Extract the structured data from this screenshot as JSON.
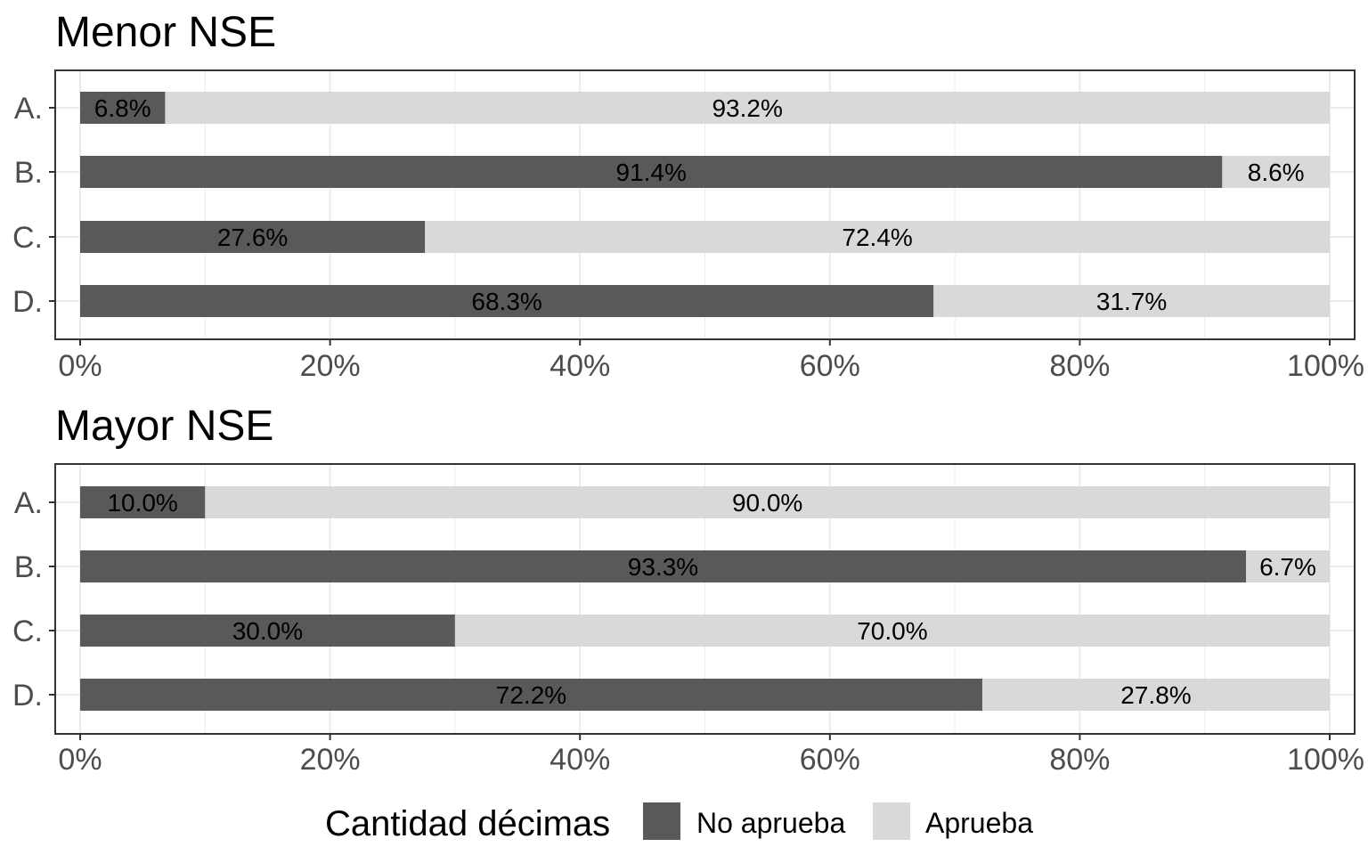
{
  "colors": {
    "no_aprueba": "#595959",
    "aprueba": "#d9d9d9",
    "grid": "#ebebeb",
    "axis_text": "#4d4d4d",
    "panel_border": "#333333",
    "label_text": "#000000"
  },
  "chart_data": [
    {
      "type": "bar",
      "orientation": "horizontal",
      "stacked": true,
      "title": "Menor NSE",
      "categories": [
        "A.",
        "B.",
        "C.",
        "D."
      ],
      "series": [
        {
          "name": "No aprueba",
          "values": [
            6.8,
            91.4,
            27.6,
            68.3
          ],
          "labels": [
            "6.8%",
            "91.4%",
            "27.6%",
            "68.3%"
          ]
        },
        {
          "name": "Aprueba",
          "values": [
            93.2,
            8.6,
            72.4,
            31.7
          ],
          "labels": [
            "93.2%",
            "8.6%",
            "72.4%",
            "31.7%"
          ]
        }
      ],
      "xlim": [
        0,
        100
      ],
      "xticks": [
        "0%",
        "20%",
        "40%",
        "60%",
        "80%",
        "100%"
      ],
      "grid": true
    },
    {
      "type": "bar",
      "orientation": "horizontal",
      "stacked": true,
      "title": "Mayor NSE",
      "categories": [
        "A.",
        "B.",
        "C.",
        "D."
      ],
      "series": [
        {
          "name": "No aprueba",
          "values": [
            10.0,
            93.3,
            30.0,
            72.2
          ],
          "labels": [
            "10.0%",
            "93.3%",
            "30.0%",
            "72.2%"
          ]
        },
        {
          "name": "Aprueba",
          "values": [
            90.0,
            6.7,
            70.0,
            27.8
          ],
          "labels": [
            "90.0%",
            "6.7%",
            "70.0%",
            "27.8%"
          ]
        }
      ],
      "xlim": [
        0,
        100
      ],
      "xticks": [
        "0%",
        "20%",
        "40%",
        "60%",
        "80%",
        "100%"
      ],
      "grid": true
    }
  ],
  "legend": {
    "title": "Cantidad décimas",
    "position": "bottom",
    "items": [
      {
        "label": "No aprueba",
        "color": "#595959"
      },
      {
        "label": "Aprueba",
        "color": "#d9d9d9"
      }
    ]
  }
}
